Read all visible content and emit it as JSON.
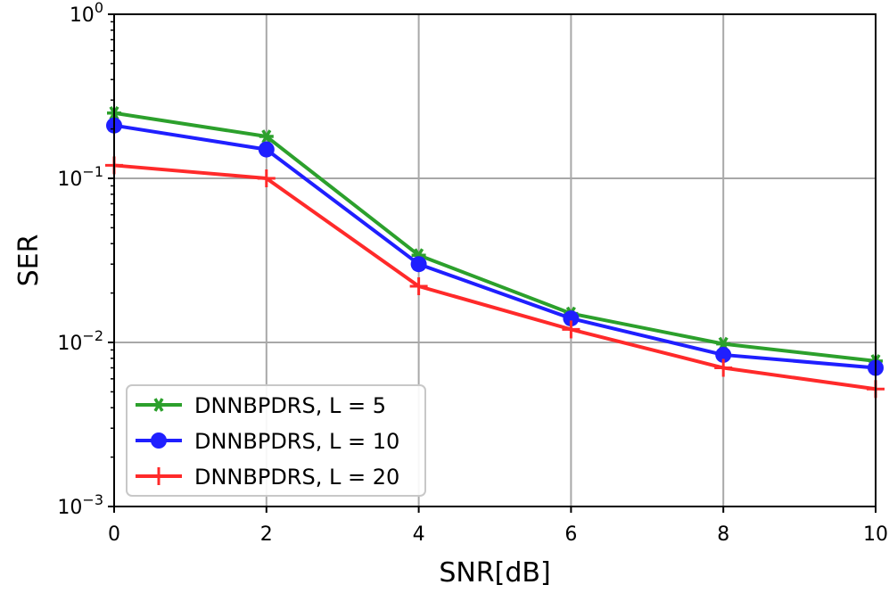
{
  "chart_data": {
    "type": "line",
    "title": "",
    "xlabel": "SNR[dB]",
    "ylabel": "SER",
    "yscale": "log",
    "xlim": [
      0,
      10
    ],
    "ylim": [
      0.001,
      1
    ],
    "grid": true,
    "x": [
      0,
      2,
      4,
      6,
      8,
      10
    ],
    "xticks": [
      {
        "value": 0,
        "label": "0"
      },
      {
        "value": 2,
        "label": "2"
      },
      {
        "value": 4,
        "label": "4"
      },
      {
        "value": 6,
        "label": "6"
      },
      {
        "value": 8,
        "label": "8"
      },
      {
        "value": 10,
        "label": "10"
      }
    ],
    "yticks": [
      {
        "value": 1,
        "base": "10",
        "exp": "0"
      },
      {
        "value": 0.1,
        "base": "10",
        "exp": "−1"
      },
      {
        "value": 0.01,
        "base": "10",
        "exp": "−2"
      },
      {
        "value": 0.001,
        "base": "10",
        "exp": "−3"
      }
    ],
    "legend_position": "lower-left",
    "series": [
      {
        "name": "DNNBPDRS, L = 5",
        "color": "#2ca02c",
        "marker": "star",
        "values": [
          0.25,
          0.18,
          0.034,
          0.015,
          0.0098,
          0.0077
        ]
      },
      {
        "name": "DNNBPDRS, L = 10",
        "color": "#1f1fff",
        "marker": "circle",
        "values": [
          0.21,
          0.15,
          0.03,
          0.014,
          0.0084,
          0.007
        ]
      },
      {
        "name": "DNNBPDRS, L = 20",
        "color": "#ff2a2a",
        "marker": "plus",
        "values": [
          0.12,
          0.1,
          0.022,
          0.012,
          0.007,
          0.0052
        ]
      }
    ]
  }
}
